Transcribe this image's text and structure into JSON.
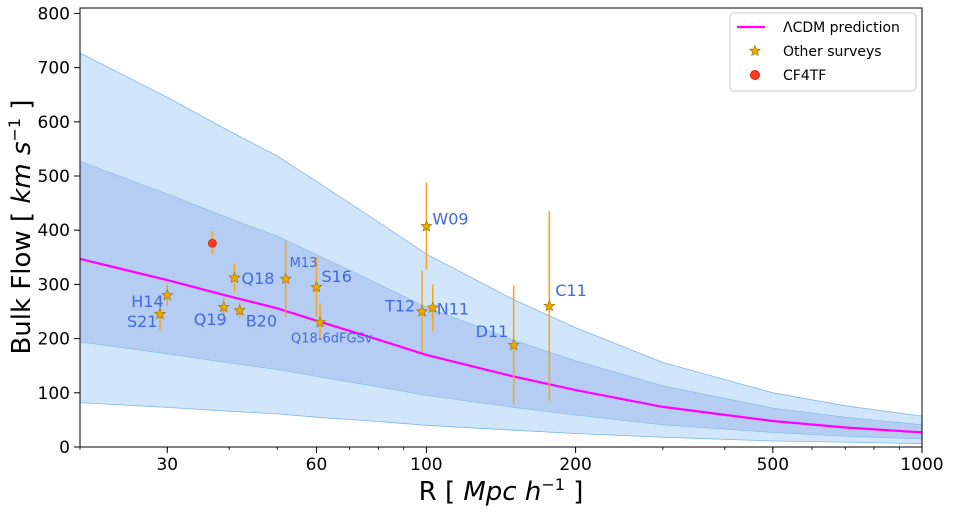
{
  "chart_data": {
    "type": "scatter",
    "x_scale": "log",
    "xlim": [
      20,
      1000
    ],
    "ylim": [
      0,
      810
    ],
    "xlabel": {
      "prefix": "R  [ ",
      "italic": "Mpc h",
      "sup": "−1",
      "suffix": " ]"
    },
    "ylabel": {
      "prefix": "Bulk Flow  [ ",
      "italic": "km s",
      "sup": "−1",
      "suffix": " ]"
    },
    "x_ticks": [
      {
        "value": 30,
        "label": "30"
      },
      {
        "value": 60,
        "label": "60"
      },
      {
        "value": 100,
        "label": "100"
      },
      {
        "value": 200,
        "label": "200"
      },
      {
        "value": 500,
        "label": "500"
      },
      {
        "value": 1000,
        "label": "1000"
      }
    ],
    "y_ticks": [
      0,
      100,
      200,
      300,
      400,
      500,
      600,
      700,
      800
    ],
    "legend": {
      "position": "top-right",
      "entries": [
        {
          "key": "lcdm",
          "label": "ΛCDM prediction"
        },
        {
          "key": "other",
          "label": "Other surveys"
        },
        {
          "key": "cf4",
          "label": "CF4TF"
        }
      ]
    },
    "colors": {
      "prediction_line": "#ff00ff",
      "band_outer": "#d2e6fb",
      "band_inner": "#b5cdf3",
      "band_edge": "#7fb6ea",
      "star_fill": "#f0a900",
      "star_edge": "#9a7a00",
      "error_bar": "#f5a623",
      "cf4_fill": "#ff3b1f",
      "cf4_edge": "#c42a00",
      "label_text": "#4169e1"
    },
    "prediction_curve": {
      "name": "ΛCDM prediction",
      "x": [
        20,
        30,
        40,
        50,
        60,
        80,
        100,
        150,
        200,
        300,
        500,
        700,
        1000
      ],
      "y": [
        347,
        308,
        278,
        256,
        233,
        198,
        170,
        130,
        105,
        74,
        48,
        36,
        27
      ]
    },
    "band_outer": {
      "x": [
        20,
        30,
        40,
        50,
        60,
        80,
        100,
        150,
        200,
        300,
        500,
        700,
        1000
      ],
      "upper": [
        727,
        645,
        583,
        537,
        490,
        415,
        356,
        272,
        220,
        156,
        100,
        76,
        57
      ],
      "lower": [
        82,
        73,
        66,
        61,
        55,
        47,
        40,
        31,
        25,
        18,
        11,
        9,
        6
      ]
    },
    "band_inner": {
      "x": [
        20,
        30,
        40,
        50,
        60,
        80,
        100,
        150,
        200,
        300,
        500,
        700,
        1000
      ],
      "upper": [
        527,
        467,
        422,
        389,
        355,
        301,
        258,
        197,
        159,
        113,
        72,
        55,
        41
      ],
      "lower": [
        194,
        172,
        155,
        143,
        130,
        111,
        95,
        73,
        59,
        41,
        27,
        20,
        15
      ]
    },
    "series": [
      {
        "name": "Other surveys",
        "marker": "star",
        "points": [
          {
            "label": "S21",
            "x": 29,
            "y": 245,
            "yerr_low": 215,
            "yerr_high": 275
          },
          {
            "label": "H14",
            "x": 30,
            "y": 280,
            "yerr_low": 260,
            "yerr_high": 300
          },
          {
            "label": "Q19",
            "x": 39,
            "y": 258,
            "yerr_low": 240,
            "yerr_high": 276
          },
          {
            "label": "Q18",
            "x": 41,
            "y": 312,
            "yerr_low": 285,
            "yerr_high": 338
          },
          {
            "label": "B20",
            "x": 42,
            "y": 252,
            "yerr_low": 238,
            "yerr_high": 266
          },
          {
            "label": "M13",
            "x": 52,
            "y": 310,
            "yerr_low": 240,
            "yerr_high": 380
          },
          {
            "label": "S16",
            "x": 60,
            "y": 295,
            "yerr_low": 240,
            "yerr_high": 350
          },
          {
            "label": "Q18-6dFGSv",
            "x": 61,
            "y": 230,
            "yerr_low": 200,
            "yerr_high": 265
          },
          {
            "label": "W09",
            "x": 100,
            "y": 407,
            "yerr_low": 328,
            "yerr_high": 488
          },
          {
            "label": "T12",
            "x": 98,
            "y": 250,
            "yerr_low": 175,
            "yerr_high": 325
          },
          {
            "label": "N11",
            "x": 103,
            "y": 257,
            "yerr_low": 213,
            "yerr_high": 300
          },
          {
            "label": "D11",
            "x": 150,
            "y": 188,
            "yerr_low": 78,
            "yerr_high": 298
          },
          {
            "label": "C11",
            "x": 177,
            "y": 260,
            "yerr_low": 85,
            "yerr_high": 435
          }
        ]
      },
      {
        "name": "CF4TF",
        "marker": "circle",
        "points": [
          {
            "x": 37,
            "y": 376,
            "yerr_low": 356,
            "yerr_high": 398
          }
        ]
      }
    ]
  }
}
